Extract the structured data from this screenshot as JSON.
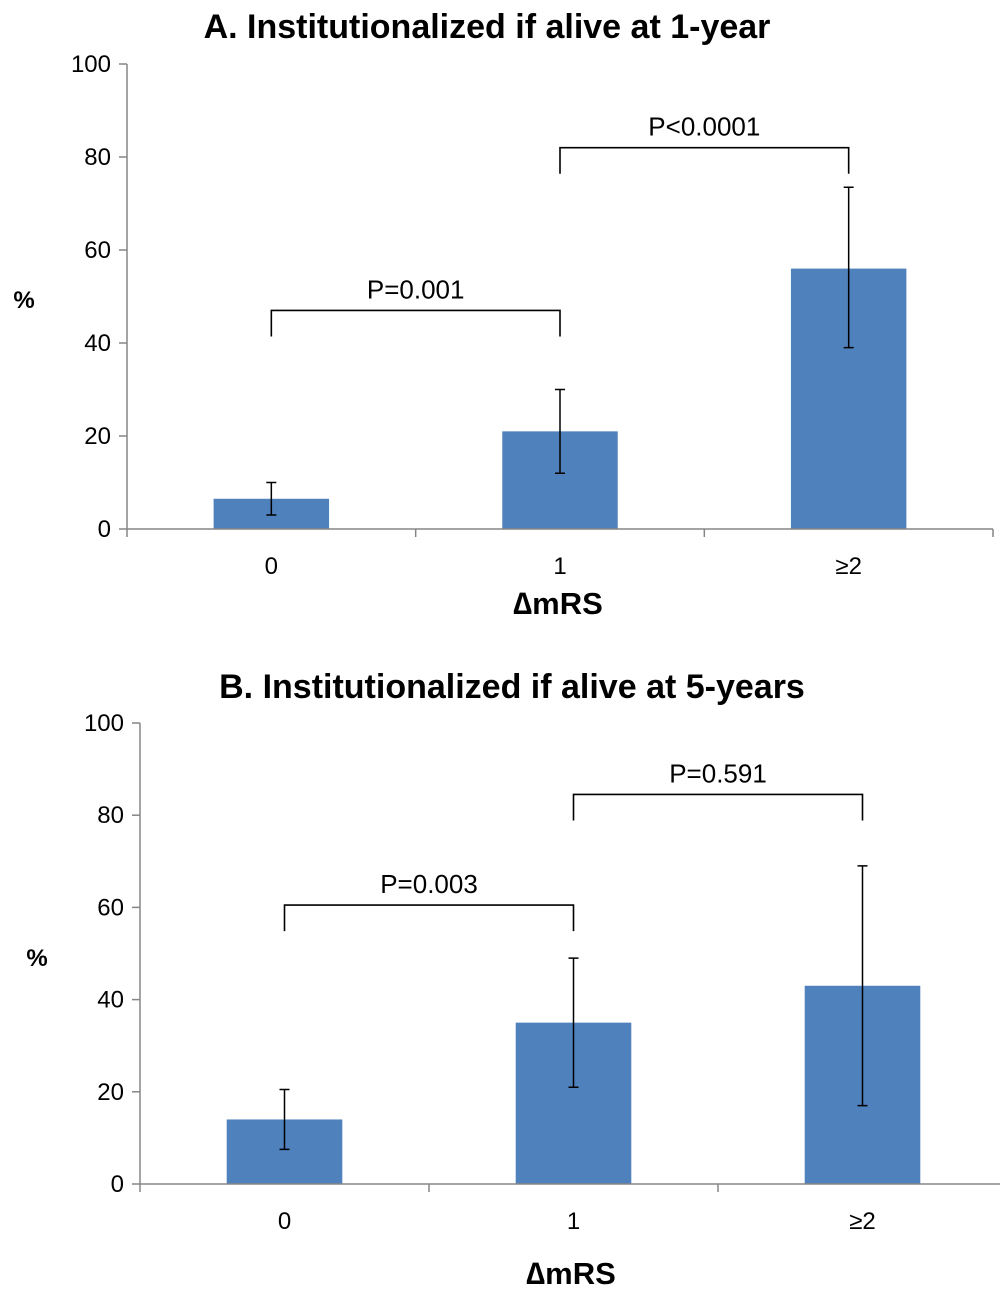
{
  "colors": {
    "bar": "#4f81bd",
    "axis": "#868686"
  },
  "chart_data": [
    {
      "type": "bar",
      "title": "A. Institutionalized if alive at 1-year",
      "xlabel": "∆mRS",
      "ylabel": "%",
      "ylim": [
        0,
        100
      ],
      "yticks": [
        "0",
        "20",
        "40",
        "60",
        "80",
        "100"
      ],
      "categories": [
        "0",
        "1",
        "≥2"
      ],
      "values": [
        6.5,
        21,
        56
      ],
      "error_low": [
        3,
        12,
        39
      ],
      "error_high": [
        10,
        30,
        73.5
      ],
      "grid": false,
      "comparisons": [
        {
          "from": 0,
          "to": 1,
          "label": "P=0.001",
          "level": 47
        },
        {
          "from": 1,
          "to": 2,
          "label": "P<0.0001",
          "level": 82
        }
      ]
    },
    {
      "type": "bar",
      "title": "B. Institutionalized if alive at 5-years",
      "xlabel": "∆mRS",
      "ylabel": "%",
      "ylim": [
        0,
        100
      ],
      "yticks": [
        "0",
        "20",
        "40",
        "60",
        "80",
        "100"
      ],
      "categories": [
        "0",
        "1",
        "≥2"
      ],
      "values": [
        14,
        35,
        43
      ],
      "error_low": [
        7.5,
        21,
        17
      ],
      "error_high": [
        20.5,
        49,
        69
      ],
      "grid": false,
      "comparisons": [
        {
          "from": 0,
          "to": 1,
          "label": "P=0.003",
          "level": 60.5
        },
        {
          "from": 1,
          "to": 2,
          "label": "P=0.591",
          "level": 84.5
        }
      ]
    }
  ]
}
